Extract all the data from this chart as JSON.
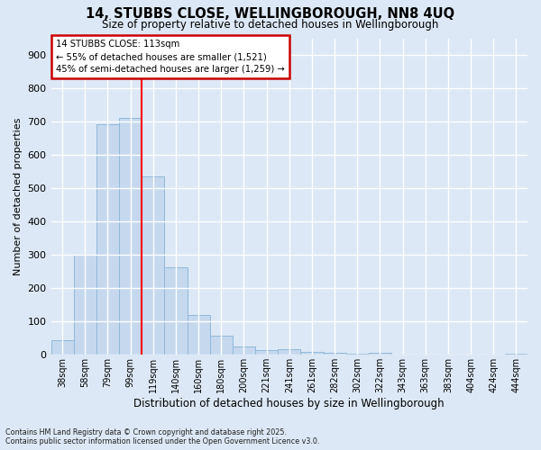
{
  "title_line1": "14, STUBBS CLOSE, WELLINGBOROUGH, NN8 4UQ",
  "title_line2": "Size of property relative to detached houses in Wellingborough",
  "xlabel": "Distribution of detached houses by size in Wellingborough",
  "ylabel": "Number of detached properties",
  "categories": [
    "38sqm",
    "58sqm",
    "79sqm",
    "99sqm",
    "119sqm",
    "140sqm",
    "160sqm",
    "180sqm",
    "200sqm",
    "221sqm",
    "241sqm",
    "261sqm",
    "282sqm",
    "302sqm",
    "322sqm",
    "343sqm",
    "363sqm",
    "383sqm",
    "404sqm",
    "424sqm",
    "444sqm"
  ],
  "values": [
    43,
    300,
    693,
    710,
    535,
    262,
    120,
    57,
    25,
    13,
    17,
    8,
    5,
    3,
    5,
    0,
    2,
    1,
    0,
    1,
    4
  ],
  "bar_color": "#c5d8ee",
  "bar_edge_color": "#91b8d9",
  "red_line_x": 3.5,
  "annotation_title": "14 STUBBS CLOSE: 113sqm",
  "annotation_line2": "← 55% of detached houses are smaller (1,521)",
  "annotation_line3": "45% of semi-detached houses are larger (1,259) →",
  "annotation_box_color": "#ffffff",
  "annotation_box_edge_color": "#cc0000",
  "footer_line1": "Contains HM Land Registry data © Crown copyright and database right 2025.",
  "footer_line2": "Contains public sector information licensed under the Open Government Licence v3.0.",
  "background_color": "#dce8f5",
  "plot_background_color": "#dce8f5",
  "grid_color": "#ffffff",
  "ylim": [
    0,
    950
  ],
  "yticks": [
    0,
    100,
    200,
    300,
    400,
    500,
    600,
    700,
    800,
    900
  ]
}
